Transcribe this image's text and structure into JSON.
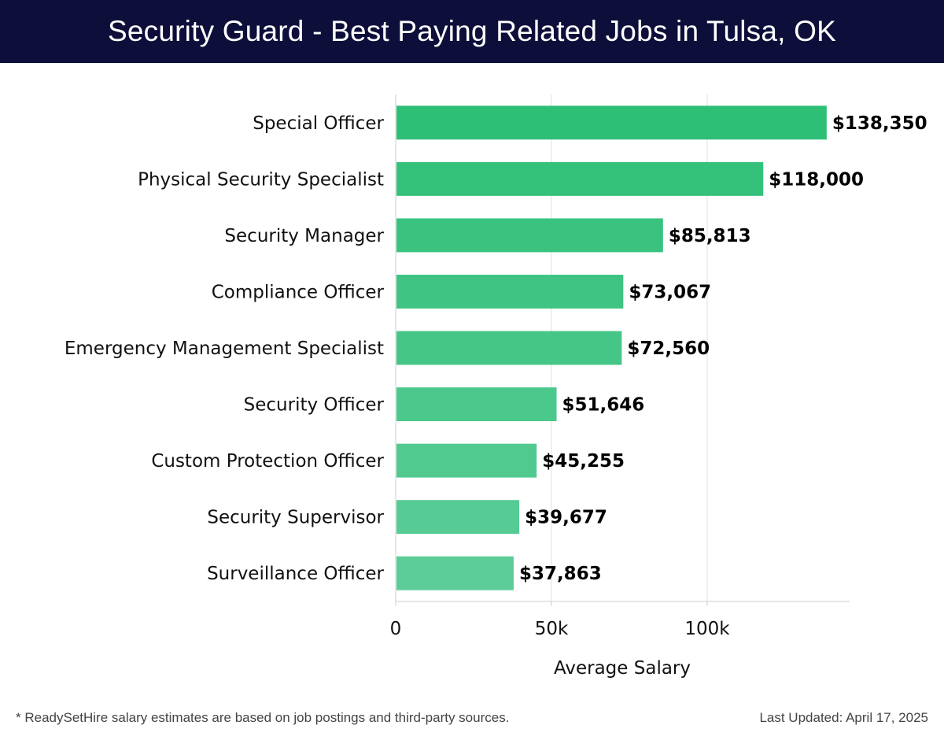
{
  "header": {
    "title": "Security Guard - Best Paying Related Jobs in Tulsa, OK"
  },
  "chart_data": {
    "type": "bar",
    "orientation": "horizontal",
    "categories": [
      "Special Officer",
      "Physical Security Specialist",
      "Security Manager",
      "Compliance Officer",
      "Emergency Management Specialist",
      "Security Officer",
      "Custom Protection Officer",
      "Security Supervisor",
      "Surveillance Officer"
    ],
    "values": [
      138350,
      118000,
      85813,
      73067,
      72560,
      51646,
      45255,
      39677,
      37863
    ],
    "value_labels": [
      "$138,350",
      "$118,000",
      "$85,813",
      "$73,067",
      "$72,560",
      "$51,646",
      "$45,255",
      "$39,677",
      "$37,863"
    ],
    "xlabel": "Average Salary",
    "ylabel": "",
    "xlim": [
      0,
      145000
    ],
    "x_ticks": [
      0,
      50000,
      100000
    ],
    "x_tick_labels": [
      "0",
      "50k",
      "100k"
    ],
    "grid": "vertical",
    "bar_color_top": "#2ebf76",
    "bar_color_bottom": "#5ccd98",
    "grid_color": "#e0e0e0",
    "axis_color": "#cccccc"
  },
  "footer": {
    "note": "* ReadySetHire salary estimates are based on job postings and third-party sources.",
    "updated": "Last Updated: April 17, 2025"
  }
}
